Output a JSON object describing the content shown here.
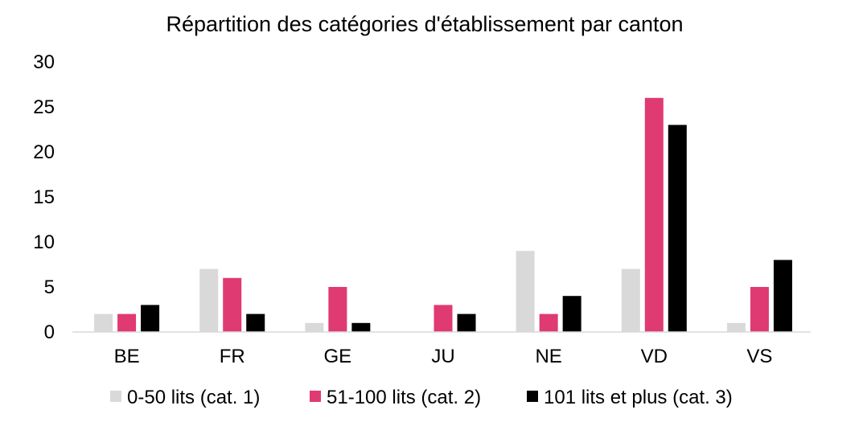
{
  "chart_data": {
    "type": "bar",
    "title": "Répartition des catégories d'établissement par canton",
    "xlabel": "",
    "ylabel": "",
    "categories": [
      "BE",
      "FR",
      "GE",
      "JU",
      "NE",
      "VD",
      "VS"
    ],
    "series": [
      {
        "name": "0-50 lits (cat. 1)",
        "color": "#d9d9d9",
        "values": [
          2,
          7,
          1,
          0,
          9,
          7,
          1
        ]
      },
      {
        "name": "51-100 lits (cat. 2)",
        "color": "#e03a72",
        "values": [
          2,
          6,
          5,
          3,
          2,
          26,
          5
        ]
      },
      {
        "name": "101 lits et plus (cat. 3)",
        "color": "#000000",
        "values": [
          3,
          2,
          1,
          2,
          4,
          23,
          8
        ]
      }
    ],
    "ylim": [
      0,
      30
    ],
    "y_ticks": [
      0,
      5,
      10,
      15,
      20,
      25,
      30
    ],
    "grid": false,
    "legend_position": "bottom"
  }
}
